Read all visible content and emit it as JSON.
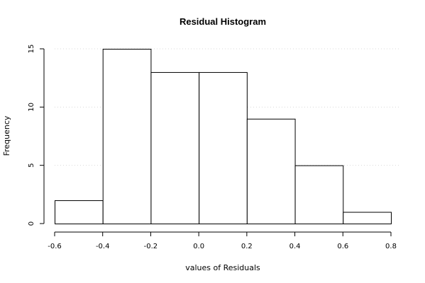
{
  "chart_data": {
    "type": "bar",
    "title": "Residual Histogram",
    "xlabel": "values of Residuals",
    "ylabel": "Frequency",
    "bins": [
      {
        "from": -0.6,
        "to": -0.4,
        "count": 2
      },
      {
        "from": -0.4,
        "to": -0.2,
        "count": 15
      },
      {
        "from": -0.2,
        "to": 0.0,
        "count": 13
      },
      {
        "from": 0.0,
        "to": 0.2,
        "count": 13
      },
      {
        "from": 0.2,
        "to": 0.4,
        "count": 9
      },
      {
        "from": 0.4,
        "to": 0.6,
        "count": 5
      },
      {
        "from": 0.6,
        "to": 0.8,
        "count": 1
      }
    ],
    "xlim": [
      -0.6,
      0.8
    ],
    "ylim": [
      0,
      15
    ],
    "xticks": [
      -0.6,
      -0.4,
      -0.2,
      0.0,
      0.2,
      0.4,
      0.6,
      0.8
    ],
    "xtick_labels": [
      "-0.6",
      "-0.4",
      "-0.2",
      "0.0",
      "0.2",
      "0.4",
      "0.6",
      "0.8"
    ],
    "yticks": [
      0,
      5,
      10,
      15
    ],
    "ytick_labels": [
      "0",
      "5",
      "10",
      "15"
    ],
    "grid": true,
    "bar_fill": "#ffffff",
    "bar_stroke": "#000000"
  }
}
